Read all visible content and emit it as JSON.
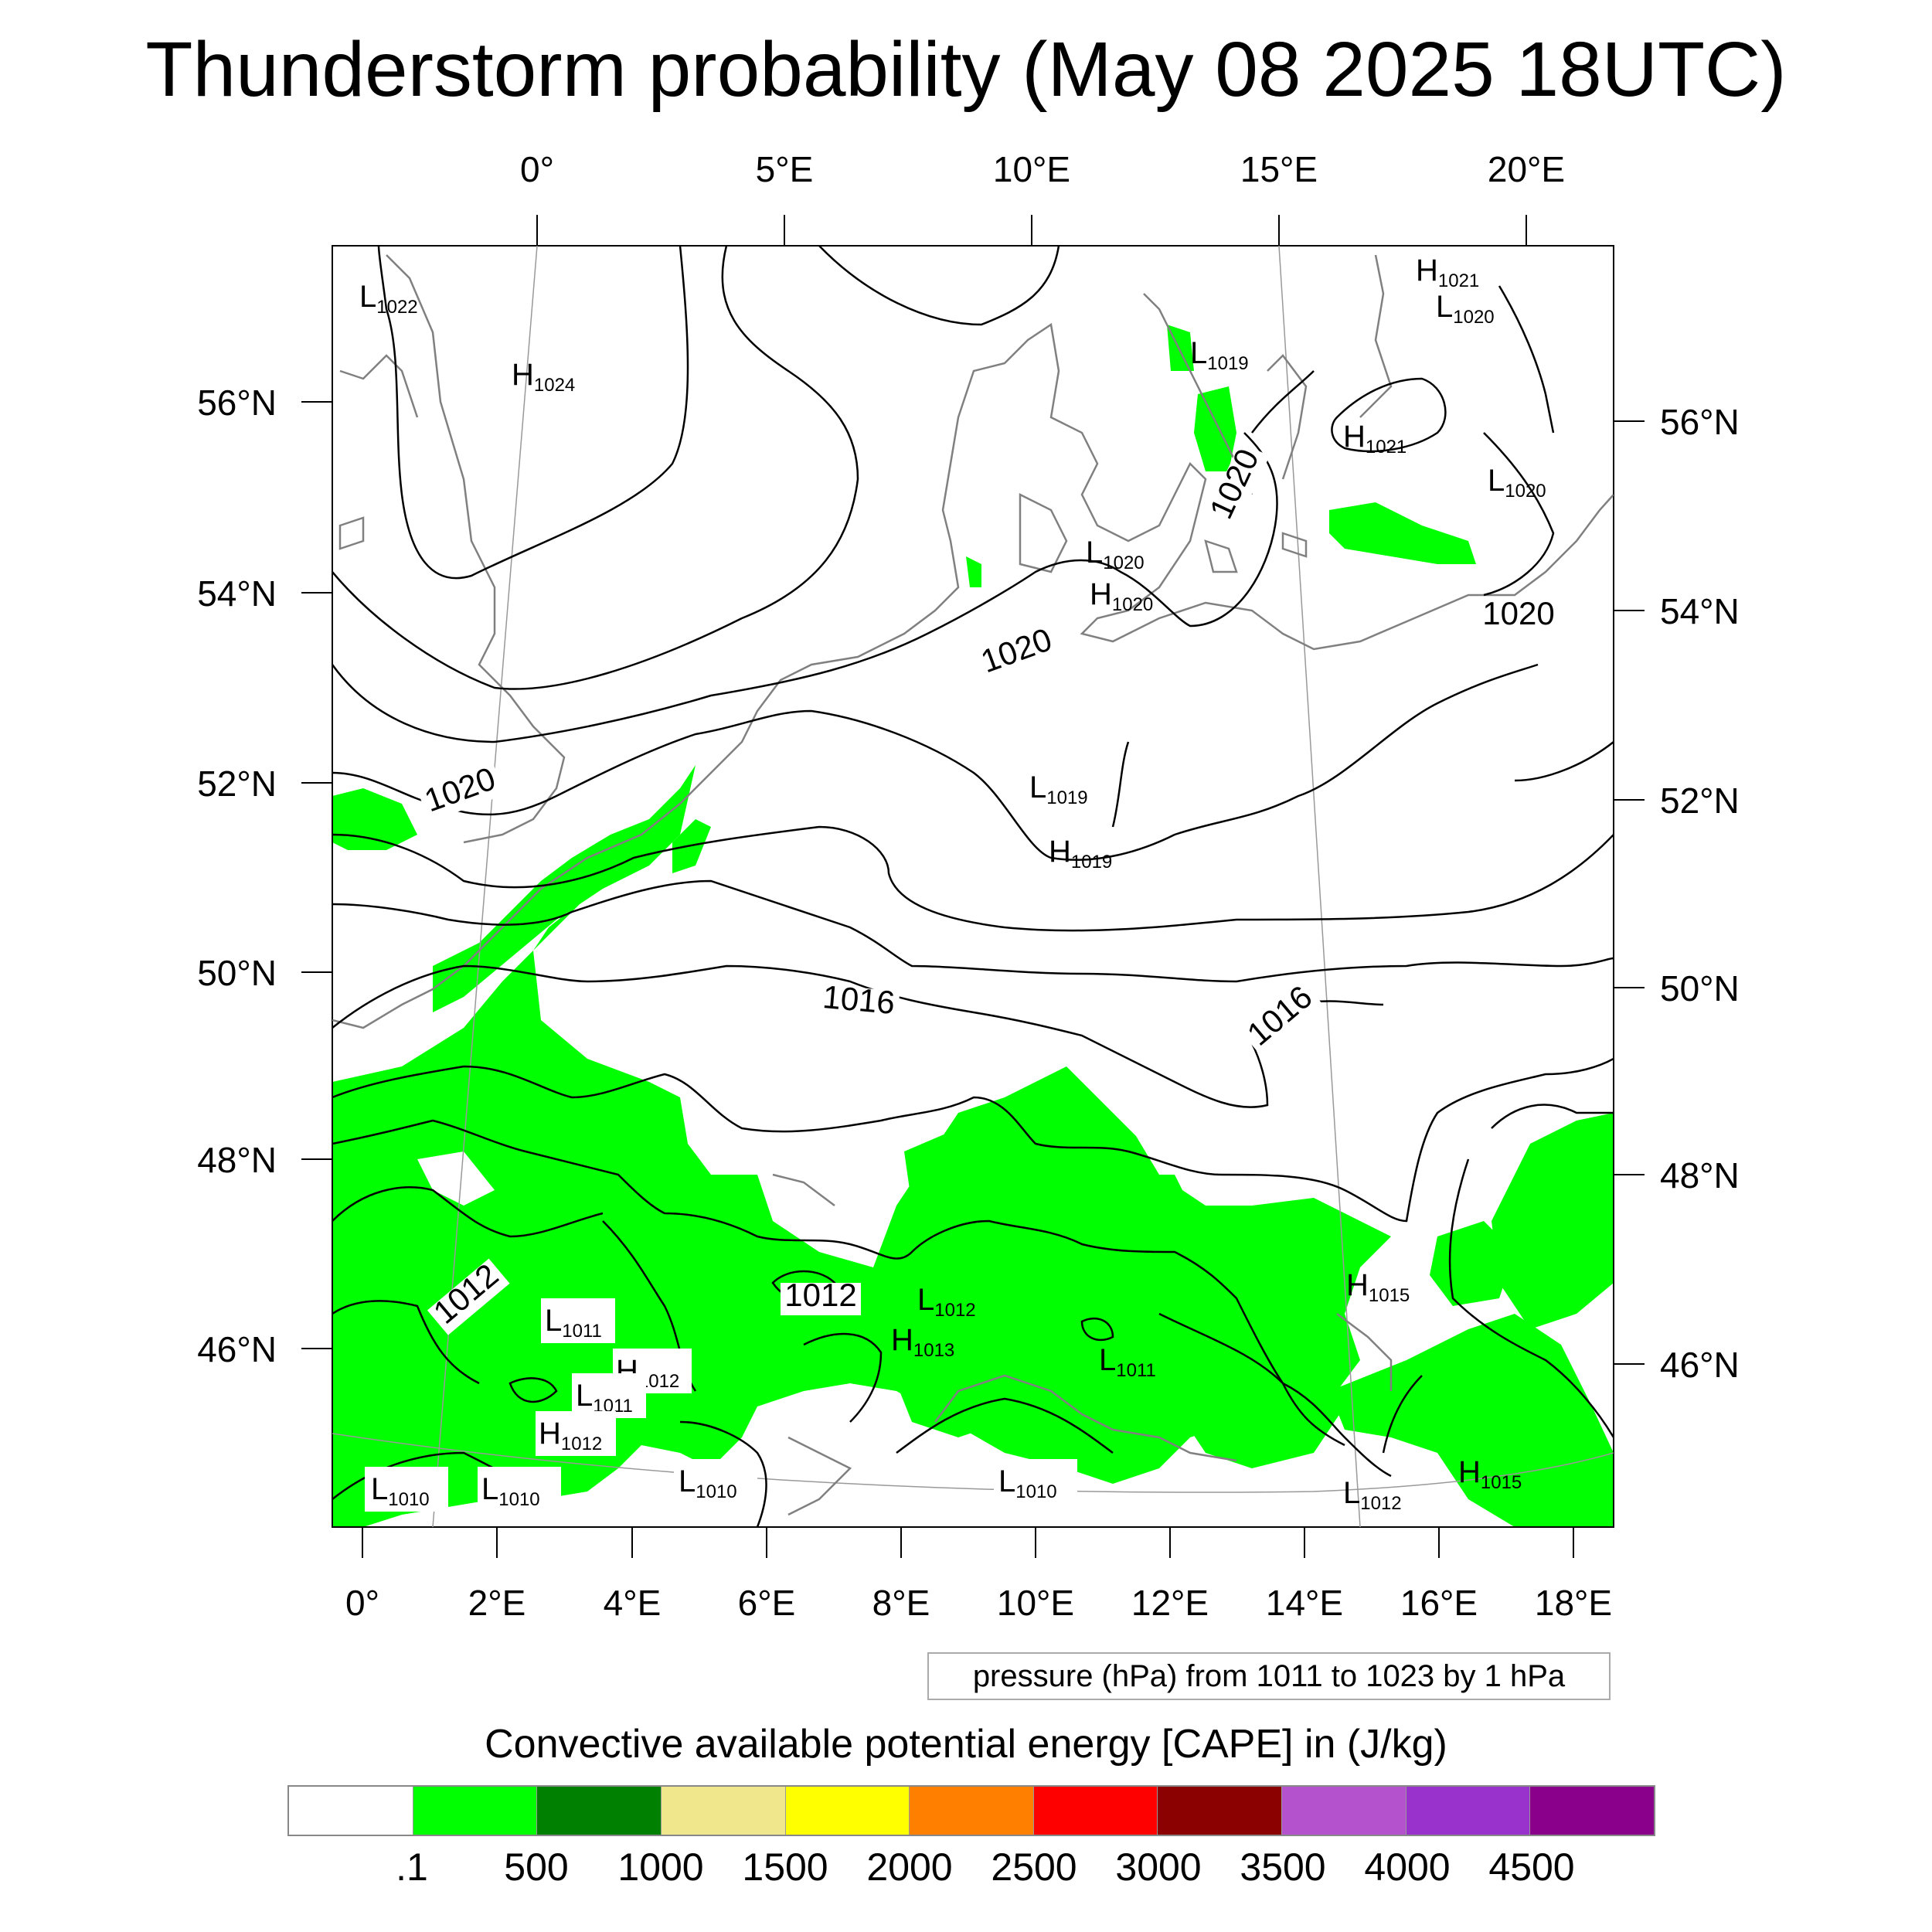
{
  "title": "Thunderstorm probability (May 08 2025 18UTC)",
  "axes": {
    "top_ticks": [
      "0°",
      "5°E",
      "10°E",
      "15°E",
      "20°E"
    ],
    "bottom_ticks": [
      "0°",
      "2°E",
      "4°E",
      "6°E",
      "8°E",
      "10°E",
      "12°E",
      "14°E",
      "16°E",
      "18°E"
    ],
    "left_ticks": [
      "56°N",
      "54°N",
      "52°N",
      "50°N",
      "48°N",
      "46°N"
    ],
    "right_ticks": [
      "56°N",
      "54°N",
      "52°N",
      "50°N",
      "48°N",
      "46°N"
    ]
  },
  "pressure_centers": [
    {
      "letter": "L",
      "value": "1022"
    },
    {
      "letter": "H",
      "value": "1024"
    },
    {
      "letter": "L",
      "value": "1019"
    },
    {
      "letter": "H",
      "value": "1021"
    },
    {
      "letter": "L",
      "value": "1020"
    },
    {
      "letter": "H",
      "value": "1021"
    },
    {
      "letter": "L",
      "value": "1020"
    },
    {
      "letter": "L",
      "value": "1020"
    },
    {
      "letter": "H",
      "value": "1020"
    },
    {
      "letter": "L",
      "value": "1019"
    },
    {
      "letter": "H",
      "value": "1019"
    },
    {
      "letter": "L",
      "value": "1011"
    },
    {
      "letter": "H",
      "value": "1012"
    },
    {
      "letter": "L",
      "value": "1011"
    },
    {
      "letter": "H",
      "value": "1012"
    },
    {
      "letter": "L",
      "value": "1012"
    },
    {
      "letter": "H",
      "value": "1013"
    },
    {
      "letter": "L",
      "value": "1011"
    },
    {
      "letter": "H",
      "value": "1015"
    },
    {
      "letter": "L",
      "value": "1010"
    },
    {
      "letter": "L",
      "value": "1010"
    },
    {
      "letter": "L",
      "value": "1010"
    },
    {
      "letter": "L",
      "value": "1010"
    },
    {
      "letter": "L",
      "value": "1012"
    },
    {
      "letter": "H",
      "value": "1015"
    }
  ],
  "isobar_labels": [
    "1020",
    "1020",
    "1020",
    "1020",
    "1016",
    "1016",
    "1012",
    "1012"
  ],
  "pressure_note": "pressure (hPa) from 1011 to 1023 by 1 hPa",
  "legend": {
    "title": "Convective available potential energy [CAPE] in (J/kg)",
    "colors": [
      "#ffffff",
      "#00ff00",
      "#008000",
      "#f0e68c",
      "#ffff00",
      "#ff8000",
      "#ff0000",
      "#8b0000",
      "#b452cd",
      "#9932cc",
      "#8b008b"
    ],
    "labels": [
      ".1",
      "500",
      "1000",
      "1500",
      "2000",
      "2500",
      "3000",
      "3500",
      "4000",
      "4500"
    ]
  }
}
